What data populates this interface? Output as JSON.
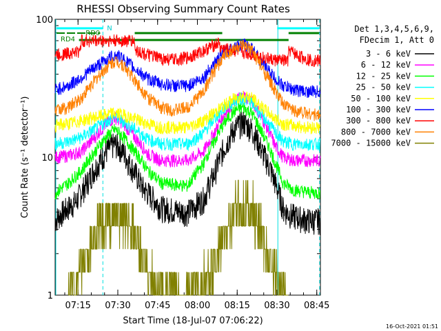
{
  "chart_data": {
    "type": "line",
    "title": "RHESSI Observing Summary Count Rates",
    "xlabel": "Start Time (18-Jul-07 07:06:22)",
    "ylabel": "Count Rate (s⁻¹ detector⁻¹)",
    "ylog": true,
    "ylim": [
      1,
      100
    ],
    "xlim_minutes": [
      0,
      100
    ],
    "x_tick_labels": [
      "07:15",
      "07:30",
      "07:45",
      "08:00",
      "08:15",
      "08:30",
      "08:45"
    ],
    "x_tick_minutes": [
      8.63,
      23.63,
      38.63,
      53.63,
      68.63,
      83.63,
      98.63
    ],
    "y_tick_labels": [
      "1",
      "10",
      "100"
    ],
    "y_tick_values": [
      1,
      10,
      100
    ],
    "legend_header": [
      "Det 1,3,4,5,6,9,",
      "FDecim 1, Att 0"
    ],
    "legend_position": "right",
    "series": [
      {
        "name": "3 - 6 keV",
        "color": "#000000",
        "x": [
          0,
          3,
          8,
          12,
          17,
          20,
          22.5,
          25,
          28,
          33,
          40,
          50,
          56,
          60,
          64,
          68,
          71,
          74,
          78,
          83,
          86,
          89,
          95,
          100
        ],
        "y": [
          3.5,
          4.0,
          4.8,
          6.5,
          9.5,
          11.5,
          12.5,
          11.5,
          9.0,
          6.0,
          4.3,
          4.0,
          5.0,
          7.5,
          12,
          16.5,
          18,
          16,
          11,
          6.5,
          4.2,
          3.8,
          3.5,
          3.5
        ]
      },
      {
        "name": "6 - 12 keV",
        "color": "#ff00ff",
        "x": [
          0,
          5,
          10,
          15,
          20,
          22.5,
          25,
          30,
          35,
          40,
          50,
          56,
          60,
          64,
          68,
          71,
          74,
          78,
          83,
          86,
          90,
          95,
          100
        ],
        "y": [
          10,
          10.3,
          11,
          14,
          18,
          19.5,
          18,
          14,
          10.5,
          9.5,
          9.5,
          11,
          15,
          21,
          26,
          28,
          26,
          19,
          12,
          10,
          9.5,
          9.5,
          9.5
        ]
      },
      {
        "name": "12 - 25 keV",
        "color": "#00ff00",
        "x": [
          0,
          5,
          10,
          15,
          20,
          22.5,
          25,
          30,
          35,
          40,
          50,
          56,
          60,
          64,
          68,
          71,
          74,
          78,
          83,
          86,
          90,
          95,
          100
        ],
        "y": [
          5.5,
          6.5,
          8,
          11,
          14.5,
          16,
          14.5,
          11,
          8,
          6.5,
          6.2,
          9,
          13,
          18,
          22,
          23,
          21,
          15,
          9,
          6.5,
          5.8,
          5.6,
          5.5
        ]
      },
      {
        "name": "25 - 50 keV",
        "color": "#00ffff",
        "x": [
          0,
          5,
          10,
          15,
          20,
          22.5,
          25,
          30,
          35,
          40,
          50,
          56,
          60,
          64,
          68,
          71,
          74,
          78,
          83,
          86,
          90,
          95,
          100
        ],
        "y": [
          12.5,
          13,
          14,
          16,
          18.5,
          20,
          18.5,
          16,
          13.5,
          12.5,
          12.5,
          15,
          19,
          23,
          26,
          27,
          25,
          20,
          15,
          13,
          12.5,
          12.5,
          12.5
        ]
      },
      {
        "name": "50 - 100 keV",
        "color": "#ffff00",
        "x": [
          0,
          5,
          10,
          15,
          20,
          22.5,
          25,
          30,
          35,
          40,
          50,
          56,
          60,
          64,
          68,
          71,
          74,
          78,
          83,
          86,
          90,
          95,
          100
        ],
        "y": [
          17,
          17.5,
          18.5,
          19.5,
          20.5,
          21,
          20.5,
          19,
          17.5,
          16.5,
          16.5,
          18.5,
          21,
          24,
          27,
          28,
          27,
          23,
          19,
          17.5,
          17,
          16.5,
          16.5
        ]
      },
      {
        "name": "100 - 300 keV",
        "color": "#0000ff",
        "x": [
          0,
          5,
          10,
          15,
          20,
          22.5,
          25,
          30,
          35,
          40,
          45,
          50,
          56,
          60,
          64,
          68,
          71,
          74,
          78,
          83,
          86,
          90,
          95,
          100
        ],
        "y": [
          31,
          33,
          38,
          45,
          52,
          55,
          53,
          44,
          37,
          34,
          33,
          33,
          38,
          48,
          58,
          64,
          66,
          62,
          48,
          37,
          33,
          31,
          30,
          30
        ]
      },
      {
        "name": "300 - 800 keV",
        "color": "#ff0000",
        "x": [
          0,
          3,
          5,
          8,
          9,
          10,
          15,
          20,
          25,
          29.9,
          30.1,
          35,
          40,
          45,
          50,
          55,
          61.9,
          62.1,
          66,
          70,
          74,
          78,
          82,
          87.9,
          88.1,
          92,
          96,
          100
        ],
        "y": [
          55,
          56,
          57,
          58,
          58,
          70,
          70,
          70,
          70,
          70,
          60,
          55,
          52,
          51,
          53,
          58,
          68,
          62,
          60,
          58,
          56,
          53,
          51,
          50,
          60,
          54,
          51,
          50
        ]
      },
      {
        "name": "800 - 7000 keV",
        "color": "#ff8000",
        "x": [
          0,
          5,
          10,
          15,
          20,
          22.5,
          25,
          30,
          35,
          40,
          45,
          50,
          56,
          60,
          64,
          68,
          71,
          74,
          78,
          83,
          86,
          90,
          95,
          100
        ],
        "y": [
          22,
          23,
          27,
          36,
          46,
          50,
          48,
          36,
          27,
          23,
          22,
          23,
          30,
          42,
          55,
          62,
          64,
          60,
          44,
          30,
          24,
          22,
          21,
          20
        ]
      },
      {
        "name": "7000 - 15000 keV",
        "color": "#808000",
        "x": [
          5,
          8,
          12,
          15,
          18,
          21,
          23,
          25,
          28,
          31,
          34,
          38,
          44,
          50,
          58,
          62,
          65,
          68,
          71,
          74,
          77,
          80,
          84,
          88
        ],
        "y": [
          1.0,
          1.3,
          1.9,
          2.6,
          3.2,
          3.6,
          3.8,
          3.6,
          3.0,
          2.3,
          1.6,
          1.1,
          1.0,
          1.0,
          1.3,
          2.0,
          3.0,
          4.0,
          4.6,
          4.2,
          3.0,
          2.0,
          1.3,
          1.0
        ]
      }
    ],
    "annotations": {
      "night_bar_label": "N",
      "roll_offsets": [
        {
          "label": "RD0",
          "segments_minutes": [
            [
              30,
              63
            ],
            [
              88,
              100
            ]
          ]
        },
        {
          "label": "RD4",
          "segments_minutes": [
            [
              0,
              9
            ],
            [
              9,
              88
            ]
          ]
        }
      ],
      "solid_vertical_lines_minutes": [
        0,
        83.7
      ],
      "dashed_vertical_lines_minutes": [
        18,
        99.7
      ]
    }
  },
  "footer": {
    "timestamp": "16-Oct-2021 01:51"
  }
}
